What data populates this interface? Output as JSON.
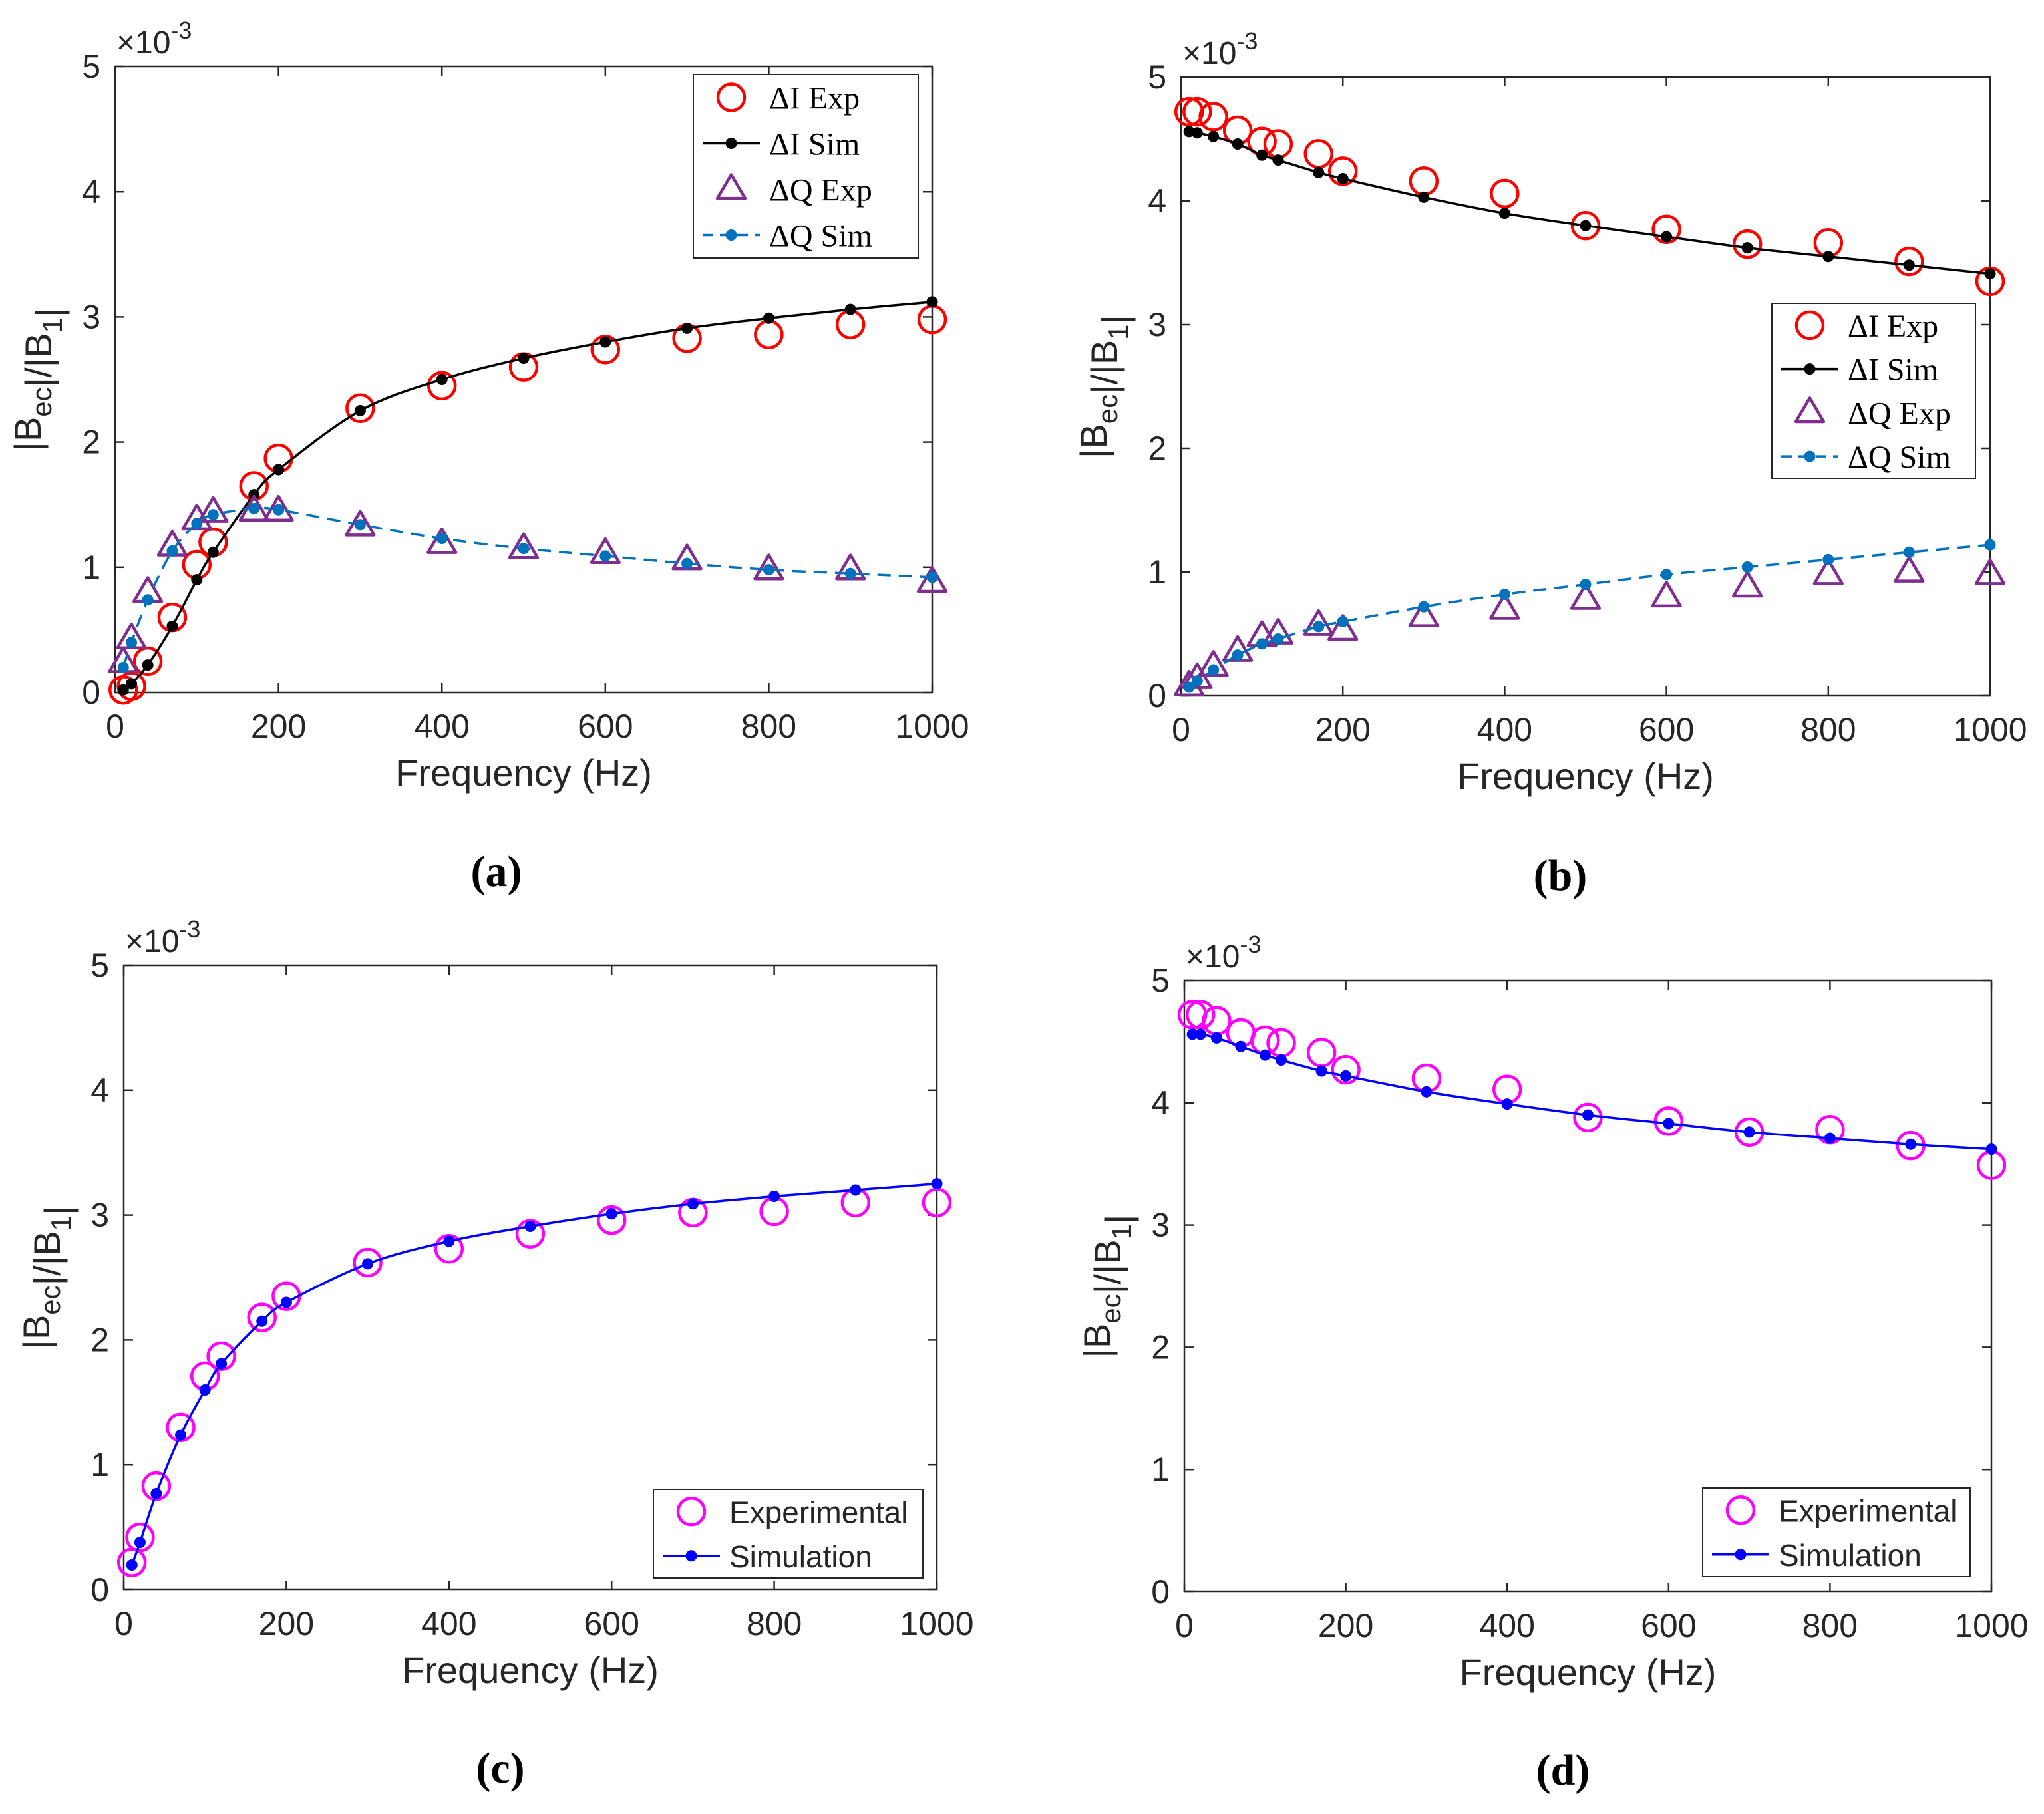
{
  "chart_data": [
    {
      "panel": "a",
      "caption": "(a)",
      "type": "line",
      "xlabel": "Frequency (Hz)",
      "ylabel": "|B_ec|/|B_1|",
      "yexponent": "×10^-3",
      "xlim": [
        0,
        1000
      ],
      "ylim": [
        0,
        5
      ],
      "xticks": [
        0,
        200,
        400,
        600,
        800,
        1000
      ],
      "yticks": [
        0,
        1,
        2,
        3,
        4,
        5
      ],
      "legend_position": "top-right",
      "series": [
        {
          "name": "ΔI Exp",
          "marker": "circle",
          "color": "#ff0000",
          "line": "none",
          "x": [
            10,
            20,
            40,
            70,
            100,
            120,
            170,
            200,
            300,
            400,
            500,
            600,
            700,
            800,
            900,
            1000
          ],
          "y": [
            0.02,
            0.05,
            0.25,
            0.6,
            1.02,
            1.2,
            1.65,
            1.87,
            2.27,
            2.45,
            2.6,
            2.74,
            2.83,
            2.86,
            2.94,
            2.98
          ]
        },
        {
          "name": "ΔI Sim",
          "marker": "dot",
          "color": "#000000",
          "line": "solid",
          "x": [
            10,
            20,
            40,
            70,
            100,
            120,
            170,
            200,
            300,
            400,
            500,
            600,
            700,
            800,
            900,
            1000
          ],
          "y": [
            0.02,
            0.07,
            0.22,
            0.53,
            0.9,
            1.12,
            1.58,
            1.78,
            2.25,
            2.5,
            2.67,
            2.8,
            2.91,
            2.99,
            3.06,
            3.12
          ]
        },
        {
          "name": "ΔQ Exp",
          "marker": "triangle",
          "color": "#7e2f8e",
          "line": "none",
          "x": [
            10,
            20,
            40,
            70,
            100,
            120,
            170,
            200,
            300,
            400,
            500,
            600,
            700,
            800,
            900,
            1000
          ],
          "y": [
            0.24,
            0.43,
            0.8,
            1.17,
            1.38,
            1.44,
            1.45,
            1.45,
            1.33,
            1.19,
            1.15,
            1.11,
            1.06,
            0.98,
            0.98,
            0.88
          ]
        },
        {
          "name": "ΔQ Sim",
          "marker": "dot",
          "color": "#0072bd",
          "line": "dashed",
          "x": [
            10,
            20,
            40,
            70,
            100,
            120,
            170,
            200,
            300,
            400,
            500,
            600,
            700,
            800,
            900,
            1000
          ],
          "y": [
            0.2,
            0.4,
            0.74,
            1.13,
            1.35,
            1.42,
            1.47,
            1.46,
            1.34,
            1.23,
            1.15,
            1.09,
            1.03,
            0.98,
            0.95,
            0.92
          ]
        }
      ]
    },
    {
      "panel": "b",
      "caption": "(b)",
      "type": "line",
      "xlabel": "Frequency (Hz)",
      "ylabel": "|B_ec|/|B_1|",
      "yexponent": "×10^-3",
      "xlim": [
        0,
        1000
      ],
      "ylim": [
        0,
        5
      ],
      "xticks": [
        0,
        200,
        400,
        600,
        800,
        1000
      ],
      "yticks": [
        0,
        1,
        2,
        3,
        4,
        5
      ],
      "legend_position": "center-right",
      "series": [
        {
          "name": "ΔI Exp",
          "marker": "circle",
          "color": "#ff0000",
          "line": "none",
          "x": [
            10,
            20,
            40,
            70,
            100,
            120,
            170,
            200,
            300,
            400,
            500,
            600,
            700,
            800,
            900,
            1000
          ],
          "y": [
            4.72,
            4.72,
            4.68,
            4.57,
            4.48,
            4.46,
            4.38,
            4.24,
            4.16,
            4.06,
            3.8,
            3.77,
            3.65,
            3.66,
            3.51,
            3.35
          ]
        },
        {
          "name": "ΔI Sim",
          "marker": "dot",
          "color": "#000000",
          "line": "solid",
          "x": [
            10,
            20,
            40,
            70,
            100,
            120,
            170,
            200,
            300,
            400,
            500,
            600,
            700,
            800,
            900,
            1000
          ],
          "y": [
            4.56,
            4.55,
            4.52,
            4.46,
            4.37,
            4.33,
            4.23,
            4.18,
            4.03,
            3.9,
            3.8,
            3.71,
            3.62,
            3.55,
            3.48,
            3.41
          ]
        },
        {
          "name": "ΔQ Exp",
          "marker": "triangle",
          "color": "#7e2f8e",
          "line": "none",
          "x": [
            10,
            20,
            40,
            70,
            100,
            120,
            170,
            200,
            300,
            400,
            500,
            600,
            700,
            800,
            900,
            1000
          ],
          "y": [
            0.08,
            0.14,
            0.24,
            0.36,
            0.48,
            0.5,
            0.57,
            0.53,
            0.64,
            0.7,
            0.78,
            0.8,
            0.88,
            0.98,
            1.0,
            0.98
          ]
        },
        {
          "name": "ΔQ Sim",
          "marker": "dot",
          "color": "#0072bd",
          "line": "dashed",
          "x": [
            10,
            20,
            40,
            70,
            100,
            120,
            170,
            200,
            300,
            400,
            500,
            600,
            700,
            800,
            900,
            1000
          ],
          "y": [
            0.07,
            0.12,
            0.21,
            0.33,
            0.42,
            0.46,
            0.56,
            0.6,
            0.72,
            0.82,
            0.9,
            0.98,
            1.04,
            1.1,
            1.16,
            1.22
          ]
        }
      ]
    },
    {
      "panel": "c",
      "caption": "(c)",
      "type": "line",
      "xlabel": "Frequency (Hz)",
      "ylabel": "|B_ec|/|B_1|",
      "yexponent": "×10^-3",
      "xlim": [
        0,
        1000
      ],
      "ylim": [
        0,
        5
      ],
      "xticks": [
        0,
        200,
        400,
        600,
        800,
        1000
      ],
      "yticks": [
        0,
        1,
        2,
        3,
        4,
        5
      ],
      "legend_position": "bottom-right",
      "series": [
        {
          "name": "Experimental",
          "marker": "circle",
          "color": "#ff00ff",
          "line": "none",
          "x": [
            10,
            20,
            40,
            70,
            100,
            120,
            170,
            200,
            300,
            400,
            500,
            600,
            700,
            800,
            900,
            1000
          ],
          "y": [
            0.22,
            0.42,
            0.83,
            1.3,
            1.71,
            1.87,
            2.18,
            2.35,
            2.62,
            2.73,
            2.85,
            2.96,
            3.02,
            3.03,
            3.1,
            3.1
          ]
        },
        {
          "name": "Simulation",
          "marker": "dot",
          "color": "#0000ff",
          "line": "solid",
          "x": [
            10,
            20,
            40,
            70,
            100,
            120,
            170,
            200,
            300,
            400,
            500,
            600,
            700,
            800,
            900,
            1000
          ],
          "y": [
            0.2,
            0.38,
            0.77,
            1.24,
            1.6,
            1.81,
            2.15,
            2.3,
            2.61,
            2.79,
            2.91,
            3.01,
            3.09,
            3.15,
            3.2,
            3.25
          ]
        }
      ]
    },
    {
      "panel": "d",
      "caption": "(d)",
      "type": "line",
      "xlabel": "Frequency (Hz)",
      "ylabel": "|B_ec|/|B_1|",
      "yexponent": "×10^-3",
      "xlim": [
        0,
        1000
      ],
      "ylim": [
        0,
        5
      ],
      "xticks": [
        0,
        200,
        400,
        600,
        800,
        1000
      ],
      "yticks": [
        0,
        1,
        2,
        3,
        4,
        5
      ],
      "legend_position": "bottom-right",
      "series": [
        {
          "name": "Experimental",
          "marker": "circle",
          "color": "#ff00ff",
          "line": "none",
          "x": [
            10,
            20,
            40,
            70,
            100,
            120,
            170,
            200,
            300,
            400,
            500,
            600,
            700,
            800,
            900,
            1000
          ],
          "y": [
            4.72,
            4.72,
            4.67,
            4.57,
            4.51,
            4.49,
            4.41,
            4.27,
            4.2,
            4.11,
            3.88,
            3.85,
            3.76,
            3.78,
            3.65,
            3.49
          ]
        },
        {
          "name": "Simulation",
          "marker": "dot",
          "color": "#0000ff",
          "line": "solid",
          "x": [
            10,
            20,
            40,
            70,
            100,
            120,
            170,
            200,
            300,
            400,
            500,
            600,
            700,
            800,
            900,
            1000
          ],
          "y": [
            4.56,
            4.56,
            4.53,
            4.46,
            4.39,
            4.35,
            4.26,
            4.22,
            4.09,
            3.99,
            3.9,
            3.83,
            3.76,
            3.71,
            3.66,
            3.62
          ]
        }
      ]
    }
  ]
}
